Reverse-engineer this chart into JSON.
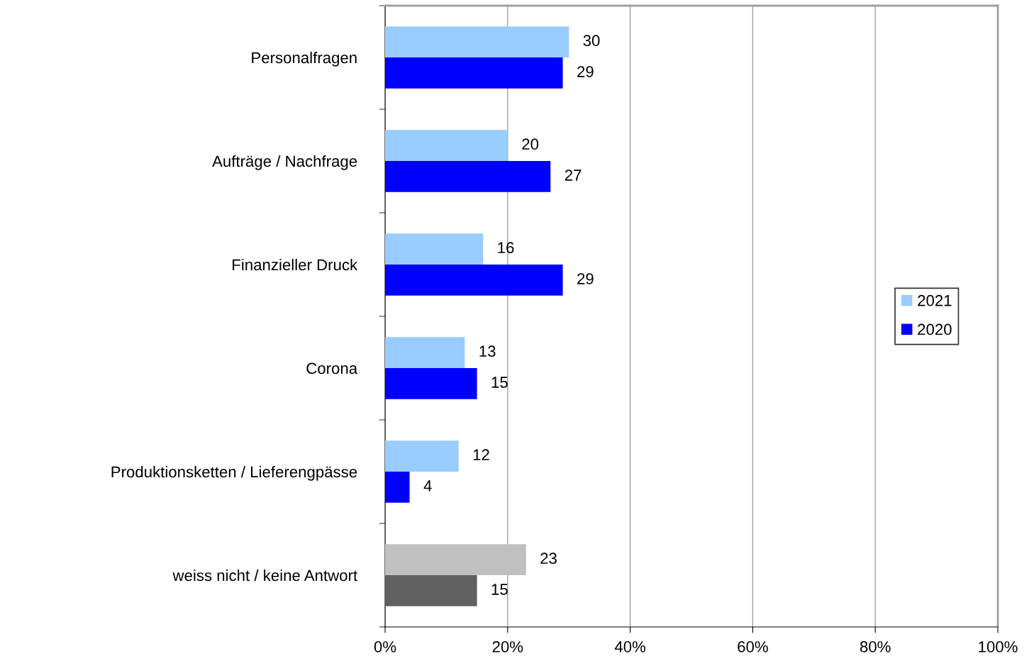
{
  "chart_data": {
    "type": "bar",
    "orientation": "horizontal",
    "categories": [
      "Personalfragen",
      "Aufträge / Nachfrage",
      "Finanzieller Druck",
      "Corona",
      "Produktionsketten / Lieferengpässe",
      "weiss nicht / keine Antwort"
    ],
    "series": [
      {
        "name": "2021",
        "color": "#99ccff",
        "colors": [
          "#99ccff",
          "#99ccff",
          "#99ccff",
          "#99ccff",
          "#99ccff",
          "#c0c0c0"
        ],
        "values": [
          30,
          20,
          16,
          13,
          12,
          23
        ]
      },
      {
        "name": "2020",
        "color": "#0000ff",
        "colors": [
          "#0000ff",
          "#0000ff",
          "#0000ff",
          "#0000ff",
          "#0000ff",
          "#606060"
        ],
        "values": [
          29,
          27,
          29,
          15,
          4,
          15
        ]
      }
    ],
    "xlim": [
      0,
      100
    ],
    "xticks": [
      {
        "value": 0,
        "label": "0%"
      },
      {
        "value": 20,
        "label": "20%"
      },
      {
        "value": 40,
        "label": "40%"
      },
      {
        "value": 60,
        "label": "60%"
      },
      {
        "value": 80,
        "label": "80%"
      },
      {
        "value": 100,
        "label": "100%"
      }
    ],
    "grid": "x",
    "legend": "right",
    "data_labels": true
  }
}
